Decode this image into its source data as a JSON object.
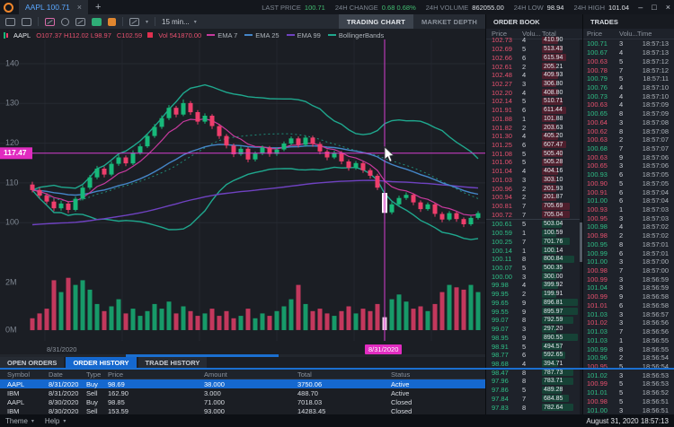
{
  "titlebar": {
    "tab_label": "AAPL 100.71",
    "close_tab": "×",
    "new_tab": "+",
    "stats": [
      {
        "label": "LAST PRICE",
        "value": "100.71",
        "green": true
      },
      {
        "label": "24H CHANGE",
        "value": "0.68  0.68%",
        "green": true
      },
      {
        "label": "24H VOLUME",
        "value": "862055.00",
        "green": false
      },
      {
        "label": "24H LOW",
        "value": "98.94",
        "green": false
      },
      {
        "label": "24H HIGH",
        "value": "101.04",
        "green": false
      }
    ],
    "window_controls": [
      "–",
      "□",
      "×"
    ]
  },
  "toolbar": {
    "icons": [
      "chat-icon",
      "annotation-icon",
      "tools-icon",
      "target-icon",
      "signature-icon",
      "indicator-icon",
      "brush-icon"
    ],
    "chart_type_icon": "chart-type-icon",
    "interval_label": "15 min...",
    "caret": "▾"
  },
  "chart_tabs": [
    {
      "label": "TRADING CHART",
      "active": true
    },
    {
      "label": "MARKET DEPTH",
      "active": false
    }
  ],
  "legend": {
    "symbol": "AAPL",
    "ohlc": "O107.37 H112.02 L98.97",
    "close": "C102.59",
    "vol": "Vol 541870.00",
    "indicators": [
      {
        "label": "EMA 7",
        "color": "#c73a9e"
      },
      {
        "label": "EMA 25",
        "color": "#4586c8"
      },
      {
        "label": "EMA 99",
        "color": "#6f42c1"
      },
      {
        "label": "BollingerBands",
        "color": "#1fa88e"
      }
    ]
  },
  "chart_data": {
    "type": "candlestick",
    "symbol": "AAPL",
    "interval": "15 min",
    "price_axis_ticks": [
      140,
      130,
      120,
      110,
      100
    ],
    "volume_axis_ticks": [
      {
        "label": "2M",
        "value": 2
      },
      {
        "label": "0M",
        "value": 0
      }
    ],
    "x_axis_label": "8/31/2020",
    "crosshair": {
      "price": 117.47,
      "price_label": "117.47",
      "date_label": "8/31/2020",
      "candle_index": 49
    },
    "hovered_candle": {
      "o": 107.37,
      "h": 112.02,
      "l": 98.97,
      "c": 102.59,
      "vol": 541870.0
    },
    "colors": {
      "up": "#17b97a",
      "down": "#ee3e6c",
      "crosshair": "#d43fd0",
      "badge": "#e12cc0",
      "ema7": "#c73a9e",
      "ema25": "#4586c8",
      "ema99": "#6f42c1",
      "bb": "#1fa88e"
    },
    "candles": [
      [
        109.6,
        110.3,
        107.6,
        108.2,
        0.5
      ],
      [
        108.2,
        108.8,
        106.2,
        106.8,
        0.7
      ],
      [
        106.8,
        107.4,
        104.7,
        105.3,
        0.9
      ],
      [
        105.3,
        105.9,
        102.9,
        103.6,
        2.1
      ],
      [
        103.6,
        105.5,
        103.0,
        104.8,
        1.6
      ],
      [
        104.8,
        105.3,
        102.4,
        103.2,
        2.2
      ],
      [
        103.2,
        106.6,
        102.8,
        106.0,
        1.9
      ],
      [
        106.0,
        109.4,
        105.6,
        108.8,
        2.1
      ],
      [
        108.8,
        112.0,
        108.3,
        111.4,
        1.7
      ],
      [
        111.4,
        114.3,
        110.9,
        113.6,
        1.1
      ],
      [
        113.6,
        114.1,
        111.4,
        112.1,
        0.8
      ],
      [
        112.1,
        115.4,
        111.7,
        114.8,
        1.0
      ],
      [
        114.8,
        117.1,
        114.3,
        116.4,
        1.3
      ],
      [
        116.4,
        116.9,
        114.2,
        114.9,
        0.7
      ],
      [
        114.9,
        118.2,
        114.5,
        117.6,
        0.9
      ],
      [
        117.6,
        119.8,
        117.1,
        119.2,
        0.6
      ],
      [
        119.2,
        122.4,
        118.8,
        121.8,
        0.8
      ],
      [
        121.8,
        124.8,
        121.3,
        124.1,
        1.1
      ],
      [
        124.1,
        127.0,
        123.6,
        126.3,
        0.9
      ],
      [
        126.3,
        129.6,
        125.8,
        128.9,
        1.2
      ],
      [
        128.9,
        129.4,
        126.5,
        127.2,
        0.7
      ],
      [
        127.2,
        131.0,
        126.8,
        130.1,
        1.0
      ],
      [
        130.1,
        130.6,
        127.1,
        127.8,
        0.8
      ],
      [
        127.8,
        128.3,
        124.7,
        125.4,
        0.6
      ],
      [
        125.4,
        127.5,
        124.9,
        126.9,
        0.7
      ],
      [
        126.9,
        127.3,
        123.6,
        124.3,
        0.9
      ],
      [
        124.3,
        124.8,
        121.1,
        121.8,
        0.6
      ],
      [
        121.8,
        122.3,
        118.7,
        119.4,
        0.8
      ],
      [
        119.4,
        119.9,
        116.5,
        117.2,
        0.5
      ],
      [
        117.2,
        119.2,
        116.8,
        118.6,
        0.6
      ],
      [
        118.6,
        119.0,
        115.2,
        115.9,
        0.9
      ],
      [
        115.9,
        117.9,
        115.4,
        117.4,
        0.5
      ],
      [
        117.4,
        119.4,
        117.0,
        118.9,
        0.7
      ],
      [
        118.9,
        119.3,
        116.6,
        117.3,
        0.6
      ],
      [
        117.3,
        118.9,
        116.8,
        118.4,
        0.8
      ],
      [
        118.4,
        120.4,
        118.0,
        119.9,
        1.0
      ],
      [
        119.9,
        121.7,
        119.4,
        121.2,
        1.3
      ],
      [
        121.2,
        121.7,
        118.9,
        119.6,
        1.9
      ],
      [
        119.6,
        121.9,
        119.1,
        121.4,
        1.1
      ],
      [
        121.4,
        121.9,
        119.1,
        119.8,
        0.8
      ],
      [
        119.8,
        120.3,
        117.2,
        117.9,
        0.9
      ],
      [
        117.9,
        118.4,
        115.7,
        116.4,
        0.7
      ],
      [
        116.4,
        118.1,
        116.0,
        117.6,
        0.6
      ],
      [
        117.6,
        118.0,
        114.7,
        115.4,
        0.8
      ],
      [
        115.4,
        115.9,
        113.1,
        113.8,
        1.0
      ],
      [
        113.8,
        115.5,
        113.3,
        115.0,
        0.7
      ],
      [
        115.0,
        115.4,
        112.5,
        113.2,
        0.9
      ],
      [
        113.2,
        113.7,
        111.1,
        111.8,
        0.8
      ],
      [
        111.8,
        112.3,
        108.2,
        108.8,
        1.1
      ],
      [
        107.37,
        112.02,
        98.97,
        102.59,
        0.542
      ],
      [
        102.59,
        105.2,
        102.1,
        104.6,
        1.3
      ],
      [
        104.6,
        106.8,
        104.2,
        106.2,
        1.5
      ],
      [
        106.2,
        107.6,
        105.7,
        107.0,
        1.2
      ],
      [
        107.0,
        107.4,
        104.4,
        105.1,
        0.9
      ],
      [
        105.1,
        105.6,
        102.7,
        103.4,
        1.0
      ],
      [
        103.4,
        105.1,
        103.0,
        104.6,
        0.8
      ],
      [
        104.6,
        105.0,
        101.5,
        102.2,
        1.1
      ],
      [
        102.2,
        102.7,
        100.1,
        100.8,
        1.6
      ],
      [
        100.8,
        102.9,
        100.4,
        102.4,
        1.9
      ],
      [
        102.4,
        102.8,
        100.2,
        100.9,
        1.8
      ],
      [
        100.9,
        101.3,
        98.9,
        99.6,
        1.7
      ],
      [
        99.6,
        101.7,
        99.2,
        101.2,
        1.9
      ],
      [
        101.2,
        102.9,
        100.8,
        102.4,
        1.6
      ]
    ]
  },
  "order_book": {
    "title": "ORDER BOOK",
    "columns": [
      "Price",
      "Volu...",
      "Total"
    ],
    "rows": [
      [
        "102.73",
        "4",
        "410.90",
        "ask"
      ],
      [
        "102.69",
        "5",
        "513.43",
        "ask"
      ],
      [
        "102.66",
        "6",
        "615.94",
        "ask"
      ],
      [
        "102.61",
        "2",
        "205.21",
        "ask"
      ],
      [
        "102.48",
        "4",
        "409.93",
        "ask"
      ],
      [
        "102.27",
        "3",
        "306.80",
        "ask"
      ],
      [
        "102.20",
        "4",
        "408.80",
        "ask"
      ],
      [
        "102.14",
        "5",
        "510.71",
        "ask"
      ],
      [
        "101.91",
        "6",
        "611.44",
        "ask"
      ],
      [
        "101.88",
        "1",
        "101.88",
        "ask"
      ],
      [
        "101.82",
        "2",
        "203.63",
        "ask"
      ],
      [
        "101.30",
        "4",
        "405.20",
        "ask"
      ],
      [
        "101.25",
        "6",
        "607.47",
        "ask"
      ],
      [
        "101.08",
        "5",
        "505.40",
        "ask"
      ],
      [
        "101.06",
        "5",
        "505.28",
        "ask"
      ],
      [
        "101.04",
        "4",
        "404.16",
        "ask"
      ],
      [
        "101.03",
        "3",
        "303.10",
        "ask"
      ],
      [
        "100.96",
        "2",
        "201.93",
        "ask"
      ],
      [
        "100.94",
        "2",
        "201.87",
        "ask"
      ],
      [
        "100.81",
        "7",
        "705.69",
        "ask"
      ],
      [
        "100.72",
        "7",
        "705.04",
        "ask"
      ],
      [
        "100.61",
        "5",
        "503.04",
        "bid"
      ],
      [
        "100.59",
        "1",
        "100.59",
        "bid"
      ],
      [
        "100.25",
        "7",
        "701.76",
        "bid"
      ],
      [
        "100.14",
        "1",
        "100.14",
        "bid"
      ],
      [
        "100.11",
        "8",
        "800.84",
        "bid"
      ],
      [
        "100.07",
        "5",
        "500.35",
        "bid"
      ],
      [
        "100.00",
        "3",
        "300.00",
        "bid"
      ],
      [
        "99.98",
        "4",
        "399.92",
        "bid"
      ],
      [
        "99.95",
        "2",
        "199.91",
        "bid"
      ],
      [
        "99.65",
        "9",
        "896.81",
        "bid"
      ],
      [
        "99.55",
        "9",
        "895.97",
        "bid"
      ],
      [
        "99.07",
        "8",
        "792.59",
        "bid"
      ],
      [
        "99.07",
        "3",
        "297.20",
        "bid"
      ],
      [
        "98.95",
        "9",
        "890.55",
        "bid"
      ],
      [
        "98.91",
        "5",
        "494.57",
        "bid"
      ],
      [
        "98.77",
        "6",
        "592.65",
        "bid"
      ],
      [
        "98.68",
        "4",
        "394.71",
        "bid"
      ],
      [
        "98.47",
        "8",
        "787.73",
        "bid"
      ],
      [
        "97.96",
        "8",
        "783.71",
        "bid"
      ],
      [
        "97.86",
        "5",
        "489.28",
        "bid"
      ],
      [
        "97.84",
        "7",
        "684.85",
        "bid"
      ],
      [
        "97.83",
        "8",
        "782.64",
        "bid"
      ]
    ]
  },
  "trades": {
    "title": "TRADES",
    "columns": [
      "Price",
      "Volu...",
      "Time"
    ],
    "rows": [
      [
        "100.71",
        "3",
        "18:57:13",
        "up"
      ],
      [
        "100.67",
        "4",
        "18:57:13",
        "up"
      ],
      [
        "100.63",
        "5",
        "18:57:12",
        "dn"
      ],
      [
        "100.78",
        "7",
        "18:57:12",
        "dn"
      ],
      [
        "100.79",
        "5",
        "18:57:11",
        "up"
      ],
      [
        "100.76",
        "4",
        "18:57:10",
        "up"
      ],
      [
        "100.73",
        "4",
        "18:57:10",
        "up"
      ],
      [
        "100.63",
        "4",
        "18:57:09",
        "dn"
      ],
      [
        "100.65",
        "8",
        "18:57:09",
        "up"
      ],
      [
        "100.64",
        "3",
        "18:57:08",
        "dn"
      ],
      [
        "100.62",
        "8",
        "18:57:08",
        "dn"
      ],
      [
        "100.63",
        "2",
        "18:57:07",
        "dn"
      ],
      [
        "100.68",
        "7",
        "18:57:07",
        "up"
      ],
      [
        "100.63",
        "9",
        "18:57:06",
        "dn"
      ],
      [
        "100.65",
        "3",
        "18:57:06",
        "dn"
      ],
      [
        "100.93",
        "6",
        "18:57:05",
        "up"
      ],
      [
        "100.90",
        "5",
        "18:57:05",
        "dn"
      ],
      [
        "100.91",
        "6",
        "18:57:04",
        "dn"
      ],
      [
        "101.00",
        "6",
        "18:57:04",
        "up"
      ],
      [
        "100.93",
        "1",
        "18:57:03",
        "dn"
      ],
      [
        "100.95",
        "3",
        "18:57:03",
        "dn"
      ],
      [
        "100.98",
        "4",
        "18:57:02",
        "up"
      ],
      [
        "100.98",
        "2",
        "18:57:02",
        "dn"
      ],
      [
        "100.95",
        "8",
        "18:57:01",
        "up"
      ],
      [
        "100.99",
        "6",
        "18:57:01",
        "up"
      ],
      [
        "101.00",
        "3",
        "18:57:00",
        "up"
      ],
      [
        "100.98",
        "7",
        "18:57:00",
        "dn"
      ],
      [
        "100.99",
        "3",
        "18:56:59",
        "dn"
      ],
      [
        "101.04",
        "3",
        "18:56:59",
        "up"
      ],
      [
        "100.99",
        "9",
        "18:56:58",
        "dn"
      ],
      [
        "101.01",
        "6",
        "18:56:58",
        "dn"
      ],
      [
        "101.03",
        "3",
        "18:56:57",
        "up"
      ],
      [
        "101.02",
        "3",
        "18:56:56",
        "dn"
      ],
      [
        "101.03",
        "7",
        "18:56:56",
        "up"
      ],
      [
        "101.03",
        "1",
        "18:56:55",
        "up"
      ],
      [
        "100.99",
        "8",
        "18:56:55",
        "up"
      ],
      [
        "100.96",
        "2",
        "18:56:54",
        "up"
      ],
      [
        "100.95",
        "5",
        "18:56:54",
        "dn"
      ],
      [
        "101.02",
        "3",
        "18:56:53",
        "up"
      ],
      [
        "100.99",
        "5",
        "18:56:53",
        "dn"
      ],
      [
        "101.01",
        "5",
        "18:56:52",
        "up"
      ],
      [
        "100.98",
        "5",
        "18:56:51",
        "dn"
      ],
      [
        "101.00",
        "3",
        "18:56:51",
        "up"
      ]
    ]
  },
  "orders_panel": {
    "tabs": [
      {
        "label": "OPEN ORDERS",
        "active": false
      },
      {
        "label": "ORDER HISTORY",
        "active": true
      },
      {
        "label": "TRADE HISTORY",
        "active": false
      }
    ],
    "columns": [
      "Symbol",
      "Date",
      "Type",
      "Price",
      "Amount",
      "Total",
      "Status"
    ],
    "rows": [
      {
        "cells": [
          "AAPL",
          "8/31/2020",
          "Buy",
          "98.69",
          "38.000",
          "3750.06",
          "Active"
        ],
        "selected": true
      },
      {
        "cells": [
          "IBM",
          "8/31/2020",
          "Sell",
          "162.90",
          "3.000",
          "488.70",
          "Active"
        ],
        "selected": false
      },
      {
        "cells": [
          "AAPL",
          "8/30/2020",
          "Buy",
          "98.85",
          "71.000",
          "7018.03",
          "Closed"
        ],
        "selected": false
      },
      {
        "cells": [
          "IBM",
          "8/30/2020",
          "Sell",
          "153.59",
          "93.000",
          "14283.45",
          "Closed"
        ],
        "selected": false
      }
    ]
  },
  "statusbar": {
    "menus": [
      "Theme",
      "Help"
    ],
    "caret": "▾",
    "datetime": "August 31, 2020 18:57:13"
  }
}
